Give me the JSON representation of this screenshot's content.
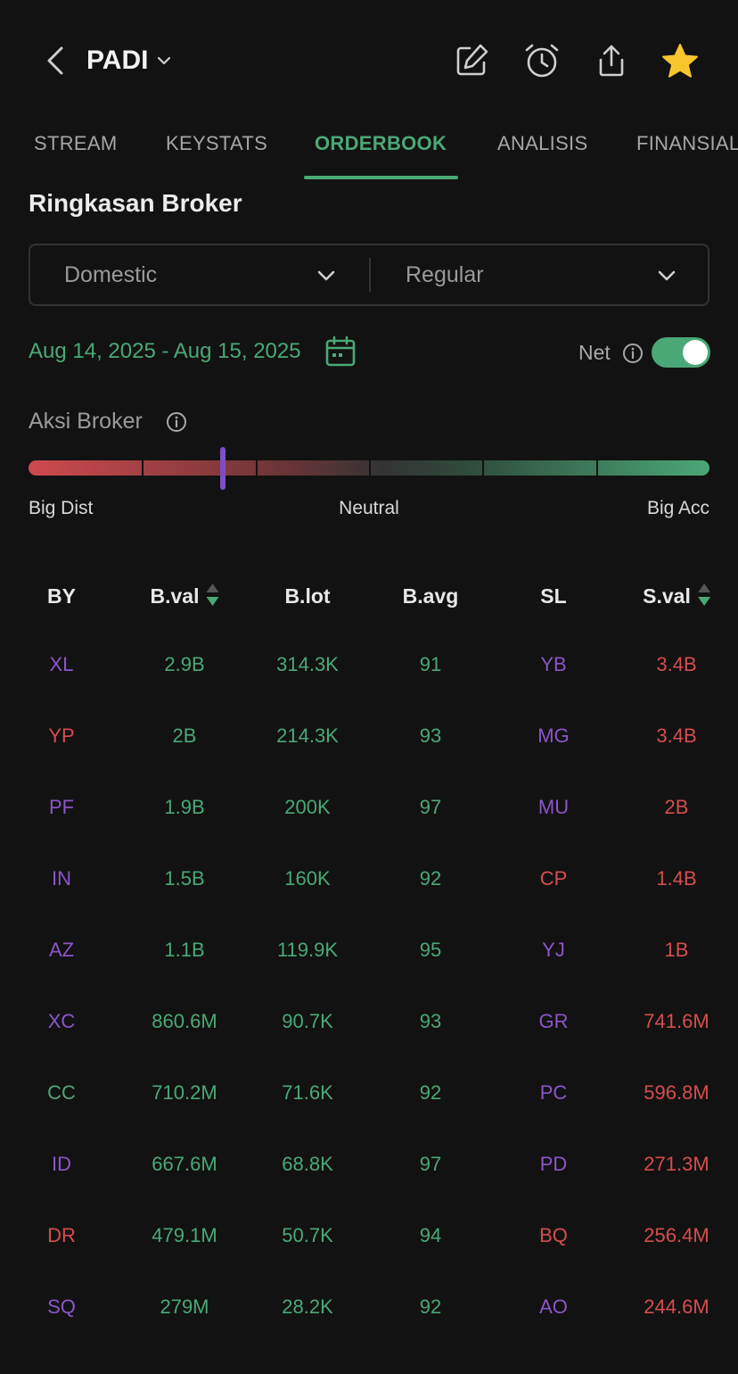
{
  "header": {
    "ticker": "PADI",
    "icons": [
      "back-icon",
      "chevron-down-icon",
      "edit-icon",
      "alarm-icon",
      "share-icon",
      "star-icon"
    ]
  },
  "tabs": [
    {
      "label": "STREAM",
      "active": false
    },
    {
      "label": "KEYSTATS",
      "active": false
    },
    {
      "label": "ORDERBOOK",
      "active": true
    },
    {
      "label": "ANALISIS",
      "active": false
    },
    {
      "label": "FINANSIAL",
      "active": false
    }
  ],
  "section": {
    "title": "Ringkasan Broker"
  },
  "filters": {
    "market": "Domestic",
    "board": "Regular"
  },
  "date": {
    "range": "Aug 14, 2025 - Aug 15, 2025"
  },
  "net": {
    "label": "Net",
    "enabled": true
  },
  "aksi": {
    "label": "Aksi Broker",
    "left_label": "Big Dist",
    "center_label": "Neutral",
    "right_label": "Big Acc",
    "segments": 6,
    "marker_level": 0.285
  },
  "table": {
    "headers": {
      "by": "BY",
      "bval": "B.val",
      "blot": "B.lot",
      "bavg": "B.avg",
      "sl": "SL",
      "sval": "S.val"
    },
    "colors": {
      "purple": "#8b55c8",
      "red": "#d64c4f",
      "green": "#4aa876"
    },
    "rows": [
      {
        "by": "XL",
        "by_color": "purple",
        "bval": "2.9B",
        "blot": "314.3K",
        "bavg": "91",
        "sl": "YB",
        "sl_color": "purple",
        "sval": "3.4B"
      },
      {
        "by": "YP",
        "by_color": "red",
        "bval": "2B",
        "blot": "214.3K",
        "bavg": "93",
        "sl": "MG",
        "sl_color": "purple",
        "sval": "3.4B"
      },
      {
        "by": "PF",
        "by_color": "purple",
        "bval": "1.9B",
        "blot": "200K",
        "bavg": "97",
        "sl": "MU",
        "sl_color": "purple",
        "sval": "2B"
      },
      {
        "by": "IN",
        "by_color": "purple",
        "bval": "1.5B",
        "blot": "160K",
        "bavg": "92",
        "sl": "CP",
        "sl_color": "red",
        "sval": "1.4B"
      },
      {
        "by": "AZ",
        "by_color": "purple",
        "bval": "1.1B",
        "blot": "119.9K",
        "bavg": "95",
        "sl": "YJ",
        "sl_color": "purple",
        "sval": "1B"
      },
      {
        "by": "XC",
        "by_color": "purple",
        "bval": "860.6M",
        "blot": "90.7K",
        "bavg": "93",
        "sl": "GR",
        "sl_color": "purple",
        "sval": "741.6M"
      },
      {
        "by": "CC",
        "by_color": "green",
        "bval": "710.2M",
        "blot": "71.6K",
        "bavg": "92",
        "sl": "PC",
        "sl_color": "purple",
        "sval": "596.8M"
      },
      {
        "by": "ID",
        "by_color": "purple",
        "bval": "667.6M",
        "blot": "68.8K",
        "bavg": "97",
        "sl": "PD",
        "sl_color": "purple",
        "sval": "271.3M"
      },
      {
        "by": "DR",
        "by_color": "red",
        "bval": "479.1M",
        "blot": "50.7K",
        "bavg": "94",
        "sl": "BQ",
        "sl_color": "red",
        "sval": "256.4M"
      },
      {
        "by": "SQ",
        "by_color": "purple",
        "bval": "279M",
        "blot": "28.2K",
        "bavg": "92",
        "sl": "AO",
        "sl_color": "purple",
        "sval": "244.6M"
      }
    ]
  }
}
